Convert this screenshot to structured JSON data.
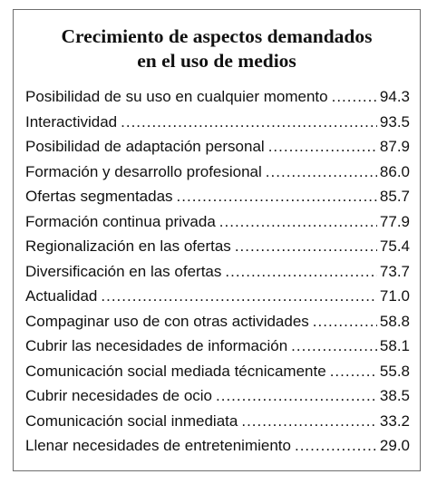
{
  "title": {
    "line1": "Crecimiento de aspectos demandados",
    "line2": "en el uso de medios"
  },
  "items": [
    {
      "label": "Posibilidad de su uso en cualquier momento",
      "value": "94.3"
    },
    {
      "label": "Interactividad",
      "value": "93.5"
    },
    {
      "label": "Posibilidad de adaptación personal",
      "value": "87.9"
    },
    {
      "label": "Formación y desarrollo profesional",
      "value": "86.0"
    },
    {
      "label": "Ofertas segmentadas",
      "value": "85.7"
    },
    {
      "label": "Formación continua privada",
      "value": "77.9"
    },
    {
      "label": "Regionalización en las ofertas",
      "value": "75.4"
    },
    {
      "label": "Diversificación en las ofertas",
      "value": "73.7"
    },
    {
      "label": "Actualidad",
      "value": "71.0"
    },
    {
      "label": "Compaginar uso de con otras actividades",
      "value": "58.8"
    },
    {
      "label": "Cubrir las necesidades de información",
      "value": "58.1"
    },
    {
      "label": "Comunicación social mediada técnicamente",
      "value": "55.8"
    },
    {
      "label": "Cubrir necesidades de ocio",
      "value": "38.5"
    },
    {
      "label": "Comunicación social inmediata",
      "value": "33.2"
    },
    {
      "label": "Llenar necesidades de entretenimiento",
      "value": "29.0"
    }
  ]
}
